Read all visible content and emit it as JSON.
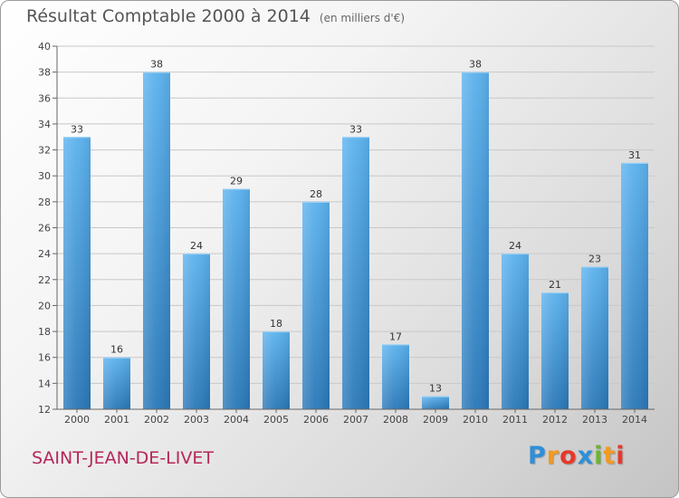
{
  "title": "Résultat Comptable 2000 à 2014",
  "subtitle": "(en milliers d'€)",
  "commune": "SAINT-JEAN-DE-LIVET",
  "logo": {
    "letters": [
      "P",
      "r",
      "o",
      "x",
      "i",
      "t",
      "i"
    ],
    "colors": [
      "#2e8fd8",
      "#f39a1f",
      "#e8382a",
      "#2e8fd8",
      "#6bb52e",
      "#f39a1f",
      "#e8382a"
    ]
  },
  "colors": {
    "bar_light": "#5cb2ee",
    "bar_dark": "#2a78b8",
    "grid": "#c8c8c8",
    "axis": "#666666"
  },
  "chart_data": {
    "type": "bar",
    "categories": [
      "2000",
      "2001",
      "2002",
      "2003",
      "2004",
      "2005",
      "2006",
      "2007",
      "2008",
      "2009",
      "2010",
      "2011",
      "2012",
      "2013",
      "2014"
    ],
    "values": [
      33,
      16,
      38,
      24,
      29,
      18,
      28,
      33,
      17,
      13,
      38,
      24,
      21,
      23,
      31
    ],
    "ylim": [
      12,
      40
    ],
    "yticks": [
      12,
      14,
      16,
      18,
      20,
      22,
      24,
      26,
      28,
      30,
      32,
      34,
      36,
      38,
      40
    ],
    "grid": true,
    "value_labels": true,
    "legend": "none"
  }
}
